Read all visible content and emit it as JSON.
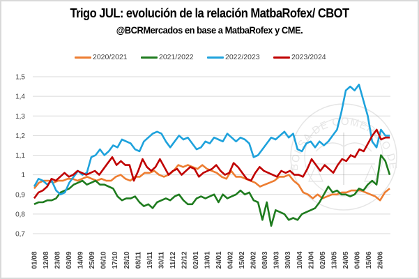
{
  "chart_data": {
    "type": "line",
    "title": "Trigo JUL: evolución de la relación MatbaRofex/ CBOT",
    "subtitle": "@BCRMercados en base a MatbaRofex y CME.",
    "xlabel": "",
    "ylabel": "",
    "ylim": [
      0.7,
      1.5
    ],
    "yticks": [
      "0,7",
      "0,8",
      "0,9",
      "1",
      "1,1",
      "1,2",
      "1,3",
      "1,4",
      "1,5"
    ],
    "ytick_values": [
      0.7,
      0.8,
      0.9,
      1.0,
      1.1,
      1.2,
      1.3,
      1.4,
      1.5
    ],
    "grid": true,
    "legend_position": "top",
    "watermark": "BOLSA DE COMERCIO DE ROSARIO",
    "xticks": [
      "01/08",
      "12/08",
      "23/08",
      "03/09",
      "14/09",
      "25/09",
      "06/10",
      "17/10",
      "28/10",
      "08/11",
      "19/11",
      "30/11",
      "11/12",
      "22/12",
      "02/01",
      "13/01",
      "24/01",
      "04/02",
      "15/02",
      "26/02",
      "08/03",
      "19/03",
      "30/03",
      "10/04",
      "21/04",
      "02/05",
      "13/05",
      "24/05",
      "04/06",
      "15/06",
      "26/06"
    ],
    "points_per_tick": 2,
    "series": [
      {
        "name": "2020/2021",
        "color": "#ed7d31",
        "values": [
          0.93,
          0.96,
          0.97,
          0.97,
          0.96,
          0.97,
          0.97,
          0.98,
          0.98,
          0.97,
          0.98,
          0.99,
          0.98,
          0.97,
          0.98,
          0.97,
          0.97,
          0.99,
          1.0,
          0.98,
          0.97,
          0.99,
          0.99,
          1.01,
          1.01,
          1.02,
          1.0,
          0.99,
          1.0,
          1.02,
          1.05,
          1.04,
          1.05,
          1.04,
          1.03,
          1.05,
          1.03,
          1.02,
          1.01,
          0.99,
          0.98,
          1.02,
          0.99,
          0.99,
          0.98,
          0.97,
          0.96,
          0.94,
          0.95,
          0.96,
          0.97,
          0.99,
          0.99,
          1.0,
          0.97,
          0.95,
          0.91,
          0.9,
          0.88,
          0.9,
          0.88,
          0.89,
          0.9,
          0.9,
          0.91,
          0.91,
          0.92,
          0.92,
          0.92,
          0.91,
          0.9,
          0.89,
          0.87,
          0.91,
          0.93
        ]
      },
      {
        "name": "2021/2022",
        "color": "#1e7b1e",
        "values": [
          0.85,
          0.86,
          0.86,
          0.87,
          0.87,
          0.88,
          0.91,
          0.92,
          0.93,
          0.95,
          0.96,
          0.97,
          0.95,
          0.96,
          0.97,
          0.95,
          0.95,
          0.94,
          0.93,
          0.89,
          0.87,
          0.88,
          0.88,
          0.89,
          0.86,
          0.84,
          0.85,
          0.83,
          0.86,
          0.87,
          0.88,
          0.87,
          0.89,
          0.9,
          0.87,
          0.85,
          0.85,
          0.88,
          0.89,
          0.88,
          0.89,
          0.9,
          0.86,
          0.9,
          0.88,
          0.89,
          0.9,
          0.92,
          0.9,
          0.91,
          0.87,
          0.86,
          0.77,
          0.86,
          0.74,
          0.82,
          0.81,
          0.8,
          0.77,
          0.78,
          0.77,
          0.8,
          0.81,
          0.82,
          0.83,
          0.86,
          0.9,
          0.94,
          0.91,
          0.92,
          0.9,
          0.9,
          0.89,
          0.9,
          0.93,
          0.92,
          0.95,
          0.97,
          0.95,
          1.1,
          1.07,
          1.0
        ]
      },
      {
        "name": "2022/2023",
        "color": "#1ea2dc",
        "values": [
          0.94,
          0.98,
          0.97,
          0.95,
          0.97,
          0.92,
          0.9,
          0.91,
          0.96,
          0.99,
          1.02,
          1.0,
          1.01,
          1.09,
          1.1,
          1.13,
          1.1,
          1.12,
          1.15,
          1.14,
          1.18,
          1.17,
          1.16,
          1.13,
          1.12,
          1.17,
          1.19,
          1.21,
          1.22,
          1.21,
          1.17,
          1.14,
          1.17,
          1.2,
          1.18,
          1.19,
          1.16,
          1.13,
          1.14,
          1.17,
          1.16,
          1.19,
          1.18,
          1.17,
          1.21,
          1.19,
          1.17,
          1.19,
          1.18,
          1.16,
          1.09,
          1.1,
          1.13,
          1.16,
          1.19,
          1.18,
          1.2,
          1.22,
          1.19,
          1.21,
          1.13,
          1.12,
          1.16,
          1.17,
          1.14,
          1.17,
          1.15,
          1.17,
          1.2,
          1.23,
          1.32,
          1.43,
          1.45,
          1.43,
          1.46,
          1.38,
          1.3,
          1.17,
          1.14,
          1.23,
          1.2,
          1.2
        ]
      },
      {
        "name": "2023/2024",
        "color": "#c00000",
        "values": [
          0.88,
          0.91,
          0.92,
          0.94,
          0.98,
          0.97,
          0.99,
          1.01,
          0.99,
          1.0,
          1.02,
          1.01,
          1.0,
          1.01,
          1.02,
          1.0,
          1.03,
          1.06,
          1.09,
          1.05,
          1.07,
          1.05,
          1.05,
          0.97,
          1.02,
          1.08,
          1.04,
          1.02,
          1.04,
          1.08,
          1.04,
          1.0,
          1.02,
          1.03,
          1.0,
          1.02,
          1.04,
          1.03,
          0.99,
          1.01,
          1.02,
          1.03,
          1.05,
          1.02,
          1.0,
          1.01,
          1.06,
          1.04,
          1.01,
          0.98,
          0.97,
          1.01,
          1.04,
          1.02,
          1.01,
          1.0,
          0.99,
          1.02,
          1.01,
          1.02,
          1.0,
          1.0,
          0.99,
          1.03,
          1.08,
          1.05,
          1.02,
          1.05,
          1.03,
          1.01,
          1.05,
          1.08,
          1.07,
          1.1,
          1.09,
          1.13,
          1.12,
          1.16,
          1.2,
          1.23,
          1.18,
          1.19,
          1.19
        ]
      }
    ]
  }
}
